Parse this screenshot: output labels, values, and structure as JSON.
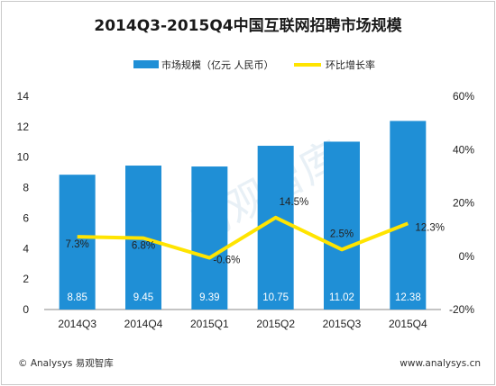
{
  "chart_data": {
    "type": "bar",
    "title": "2014Q3-2015Q4中国互联网招聘市场规模",
    "categories": [
      "2014Q3",
      "2014Q4",
      "2015Q1",
      "2015Q2",
      "2015Q3",
      "2015Q4"
    ],
    "series": [
      {
        "name": "市场规模（亿元 人民币）",
        "type": "bar",
        "axis": "left",
        "values": [
          8.85,
          9.45,
          9.39,
          10.75,
          11.02,
          12.38
        ],
        "labels": [
          "8.85",
          "9.45",
          "9.39",
          "10.75",
          "11.02",
          "12.38"
        ],
        "color": "#1f8fd6"
      },
      {
        "name": "环比增长率",
        "type": "line",
        "axis": "right",
        "values": [
          7.3,
          6.8,
          -0.6,
          14.5,
          2.5,
          12.3
        ],
        "labels": [
          "7.3%",
          "6.8%",
          "-0.6%",
          "14.5%",
          "2.5%",
          "12.3%"
        ],
        "color": "#ffe400"
      }
    ],
    "y_left": {
      "min": 0,
      "max": 14,
      "ticks": [
        "0",
        "2",
        "4",
        "6",
        "8",
        "10",
        "12",
        "14"
      ]
    },
    "y_right": {
      "min": -20,
      "max": 60,
      "ticks": [
        "-20%",
        "0%",
        "20%",
        "40%",
        "60%"
      ]
    },
    "legend_position": "top-center",
    "grid": false
  },
  "watermark": "易观智库",
  "footer": {
    "left": "© Analysys 易观智库",
    "right": "www.analysys.cn"
  }
}
